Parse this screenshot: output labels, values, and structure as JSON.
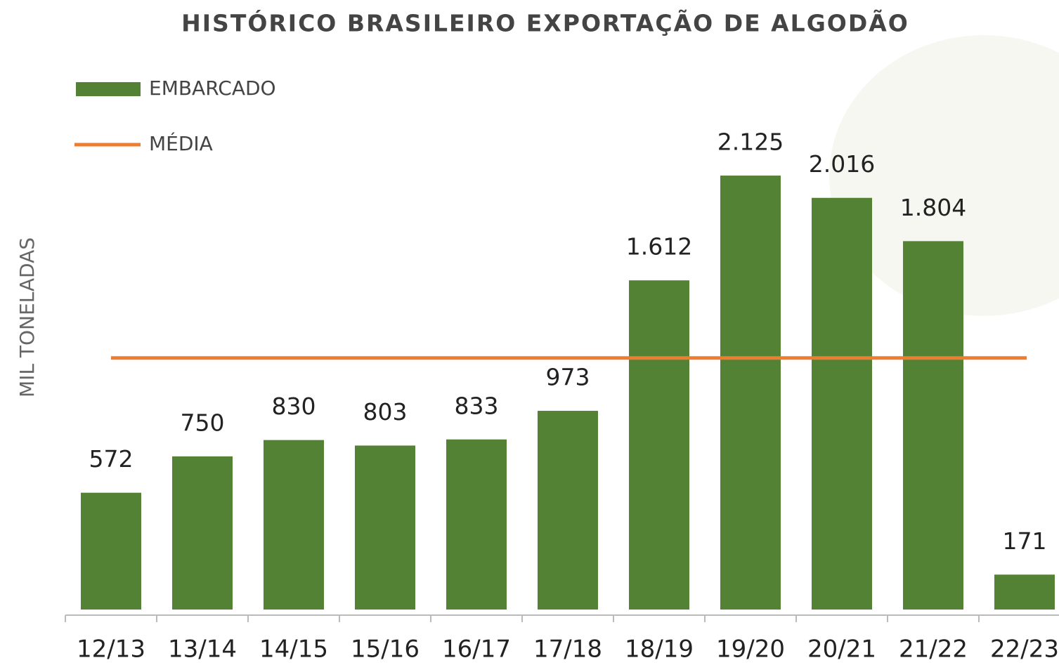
{
  "chart_data": {
    "type": "bar",
    "title": "HISTÓRICO BRASILEIRO EXPORTAÇÃO DE ALGODÃO",
    "y_label": "MIL TONELADAS",
    "categories": [
      "12/13",
      "13/14",
      "14/15",
      "15/16",
      "16/17",
      "17/18",
      "18/19",
      "19/20",
      "20/21",
      "21/22",
      "22/23"
    ],
    "series": [
      {
        "name": "EMBARCADO",
        "color": "#548235",
        "values": [
          572,
          750,
          830,
          803,
          833,
          973,
          1612,
          2125,
          2016,
          1804,
          171
        ],
        "value_labels": [
          "572",
          "750",
          "830",
          "803",
          "833",
          "973",
          "1.612",
          "2.125",
          "2.016",
          "1.804",
          "171"
        ]
      },
      {
        "name": "MÉDIA",
        "color": "#ed7d31",
        "value": 1232
      }
    ],
    "ylim": [
      0,
      2500
    ]
  }
}
